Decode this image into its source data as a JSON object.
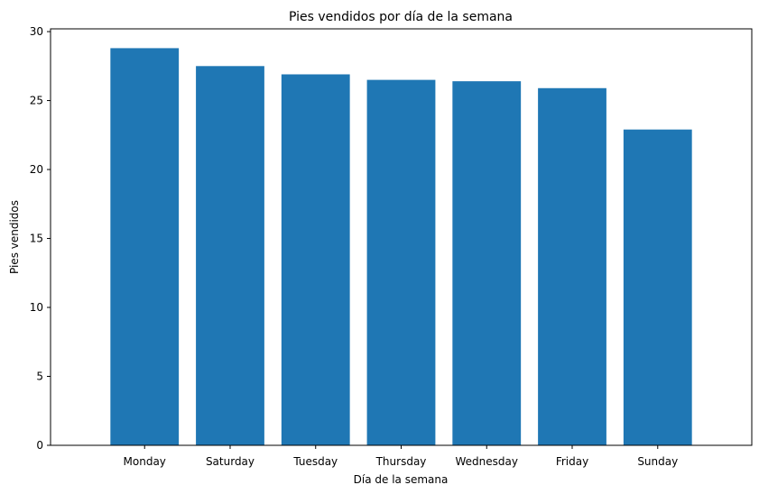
{
  "chart_data": {
    "type": "bar",
    "title": "Pies vendidos por día de la semana",
    "xlabel": "Día de la semana",
    "ylabel": "Pies vendidos",
    "categories": [
      "Monday",
      "Saturday",
      "Tuesday",
      "Thursday",
      "Wednesday",
      "Friday",
      "Sunday"
    ],
    "values": [
      28.8,
      27.5,
      26.9,
      26.5,
      26.4,
      25.9,
      22.9
    ],
    "ylim": [
      0,
      30.2
    ],
    "yticks": [
      0,
      5,
      10,
      15,
      20,
      25,
      30
    ],
    "grid": false,
    "bar_color": "#1f77b4"
  }
}
